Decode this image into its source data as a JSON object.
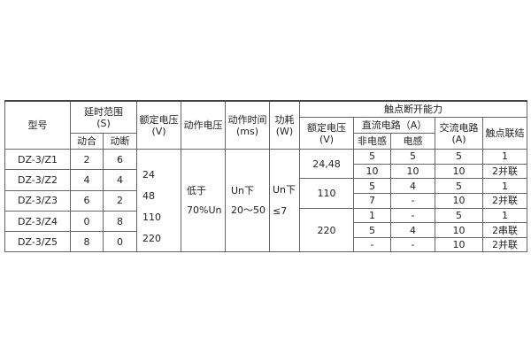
{
  "headers": {
    "model": "型号",
    "delay_range": "延时范围",
    "delay_unit": "(S)",
    "close": "动合",
    "break": "动断",
    "rated_voltage": "额定电压",
    "rated_voltage_unit": "(V)",
    "action_voltage": "动作电压",
    "action_time": "动作时间",
    "action_time_unit": "(ms)",
    "power": "功耗",
    "power_unit": "(W)",
    "breaking_capacity": "触点断开能力",
    "contact_rated_voltage": "额定电压",
    "contact_rated_voltage_unit": "(V)",
    "dc_circuit": "直流电路（A）",
    "non_inductive": "非电感",
    "inductive": "电感",
    "ac_circuit": "交流电路",
    "ac_unit": "(A)",
    "contact_connection": "触点联结"
  },
  "models": [
    {
      "model": "DZ-3/Z1",
      "close": "2",
      "break": "6"
    },
    {
      "model": "DZ-3/Z2",
      "close": "4",
      "break": "4"
    },
    {
      "model": "DZ-3/Z3",
      "close": "6",
      "break": "2"
    },
    {
      "model": "DZ-3/Z4",
      "close": "0",
      "break": "8"
    },
    {
      "model": "DZ-3/Z5",
      "close": "8",
      "break": "0"
    }
  ],
  "rated_voltages": [
    "24",
    "48",
    "110",
    "220"
  ],
  "action_voltage": [
    "低于",
    "70%Un"
  ],
  "action_time": [
    "Un下",
    "20～50"
  ],
  "power": [
    "Un下",
    "≤7"
  ],
  "contact_voltages": [
    "24,48",
    "110",
    "220"
  ],
  "contacts": [
    {
      "non_inductive": "5",
      "inductive": "5",
      "ac": "5",
      "connection": "1"
    },
    {
      "non_inductive": "10",
      "inductive": "10",
      "ac": "10",
      "connection": "2并联"
    },
    {
      "non_inductive": "5",
      "inductive": "4",
      "ac": "5",
      "connection": "1"
    },
    {
      "non_inductive": "7",
      "inductive": "-",
      "ac": "10",
      "connection": "2并联"
    },
    {
      "non_inductive": "1",
      "inductive": "-",
      "ac": "5",
      "connection": "1"
    },
    {
      "non_inductive": "5",
      "inductive": "4",
      "ac": "10",
      "connection": "2串联"
    },
    {
      "non_inductive": "-",
      "inductive": "-",
      "ac": "10",
      "connection": "2并联"
    }
  ]
}
